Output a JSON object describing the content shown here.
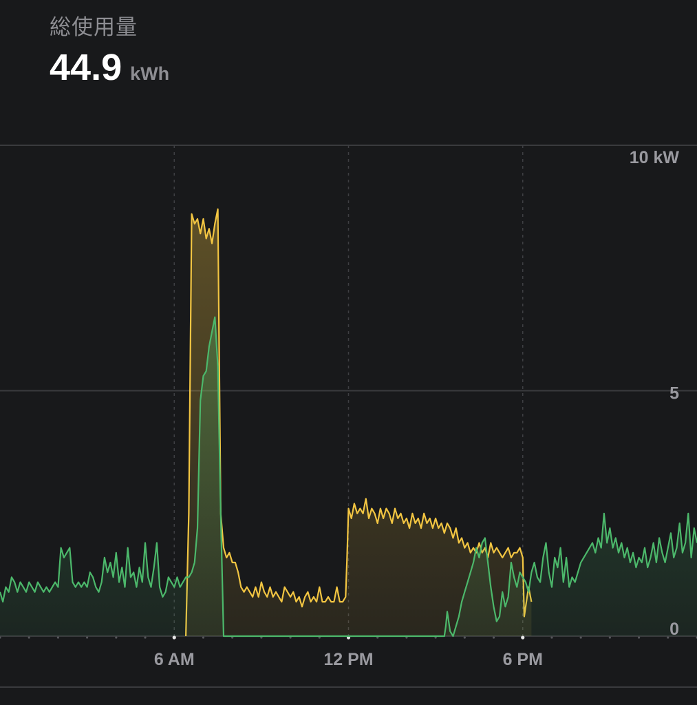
{
  "header": {
    "title": "総使用量",
    "total_value": "44.9",
    "total_unit": "kWh"
  },
  "colors": {
    "background": "#18191b",
    "consumption": "#f2c542",
    "solar": "#4cb86b",
    "grid": "#3a3b3e"
  },
  "chart_data": {
    "type": "area",
    "x_unit": "hour of day",
    "xlim": [
      0,
      24
    ],
    "ylim": [
      0,
      10
    ],
    "y_ticks": [
      {
        "value": 10,
        "label": "10 kW"
      },
      {
        "value": 5,
        "label": "5"
      },
      {
        "value": 0,
        "label": "0"
      }
    ],
    "x_ticks": [
      {
        "value": 6,
        "label": "6 AM"
      },
      {
        "value": 12,
        "label": "12 PM"
      },
      {
        "value": 18,
        "label": "6 PM"
      }
    ],
    "grid": true,
    "series": [
      {
        "key": "consumption",
        "color": "#f2c542",
        "points": [
          [
            6.4,
            0
          ],
          [
            6.5,
            2.5
          ],
          [
            6.6,
            8.6
          ],
          [
            6.7,
            8.4
          ],
          [
            6.8,
            8.5
          ],
          [
            6.9,
            8.2
          ],
          [
            7.0,
            8.5
          ],
          [
            7.1,
            8.1
          ],
          [
            7.2,
            8.3
          ],
          [
            7.3,
            8.0
          ],
          [
            7.4,
            8.4
          ],
          [
            7.5,
            8.7
          ],
          [
            7.6,
            2.5
          ],
          [
            7.7,
            1.8
          ],
          [
            7.8,
            1.6
          ],
          [
            7.9,
            1.7
          ],
          [
            8.0,
            1.5
          ],
          [
            8.1,
            1.5
          ],
          [
            8.2,
            1.3
          ],
          [
            8.3,
            1.0
          ],
          [
            8.4,
            0.9
          ],
          [
            8.5,
            1.0
          ],
          [
            8.6,
            0.9
          ],
          [
            8.7,
            0.8
          ],
          [
            8.8,
            1.0
          ],
          [
            8.9,
            0.8
          ],
          [
            9.0,
            1.1
          ],
          [
            9.1,
            0.9
          ],
          [
            9.2,
            0.8
          ],
          [
            9.3,
            1.0
          ],
          [
            9.4,
            0.8
          ],
          [
            9.5,
            0.9
          ],
          [
            9.6,
            0.8
          ],
          [
            9.7,
            0.7
          ],
          [
            9.8,
            1.0
          ],
          [
            9.9,
            0.9
          ],
          [
            10.0,
            0.8
          ],
          [
            10.1,
            0.9
          ],
          [
            10.2,
            0.7
          ],
          [
            10.3,
            0.8
          ],
          [
            10.4,
            0.6
          ],
          [
            10.5,
            0.8
          ],
          [
            10.6,
            0.9
          ],
          [
            10.7,
            0.7
          ],
          [
            10.8,
            0.8
          ],
          [
            10.9,
            0.7
          ],
          [
            11.0,
            1.0
          ],
          [
            11.1,
            0.7
          ],
          [
            11.2,
            0.7
          ],
          [
            11.3,
            0.8
          ],
          [
            11.4,
            0.7
          ],
          [
            11.5,
            0.7
          ],
          [
            11.6,
            1.0
          ],
          [
            11.7,
            0.7
          ],
          [
            11.8,
            0.7
          ],
          [
            11.9,
            0.8
          ],
          [
            11.95,
            1.6
          ],
          [
            12.0,
            2.6
          ],
          [
            12.1,
            2.4
          ],
          [
            12.2,
            2.7
          ],
          [
            12.3,
            2.5
          ],
          [
            12.4,
            2.6
          ],
          [
            12.5,
            2.5
          ],
          [
            12.6,
            2.8
          ],
          [
            12.7,
            2.4
          ],
          [
            12.8,
            2.6
          ],
          [
            12.9,
            2.5
          ],
          [
            13.0,
            2.3
          ],
          [
            13.1,
            2.6
          ],
          [
            13.2,
            2.4
          ],
          [
            13.3,
            2.6
          ],
          [
            13.4,
            2.5
          ],
          [
            13.5,
            2.3
          ],
          [
            13.6,
            2.6
          ],
          [
            13.7,
            2.4
          ],
          [
            13.8,
            2.5
          ],
          [
            13.9,
            2.3
          ],
          [
            14.0,
            2.4
          ],
          [
            14.1,
            2.2
          ],
          [
            14.2,
            2.5
          ],
          [
            14.3,
            2.3
          ],
          [
            14.4,
            2.4
          ],
          [
            14.5,
            2.2
          ],
          [
            14.6,
            2.5
          ],
          [
            14.7,
            2.3
          ],
          [
            14.8,
            2.4
          ],
          [
            14.9,
            2.2
          ],
          [
            15.0,
            2.4
          ],
          [
            15.1,
            2.2
          ],
          [
            15.2,
            2.3
          ],
          [
            15.3,
            2.1
          ],
          [
            15.4,
            2.3
          ],
          [
            15.5,
            2.2
          ],
          [
            15.6,
            2.0
          ],
          [
            15.7,
            2.2
          ],
          [
            15.8,
            1.9
          ],
          [
            15.9,
            2.0
          ],
          [
            16.0,
            1.8
          ],
          [
            16.1,
            1.9
          ],
          [
            16.2,
            1.7
          ],
          [
            16.3,
            1.8
          ],
          [
            16.4,
            1.7
          ],
          [
            16.5,
            1.9
          ],
          [
            16.6,
            1.7
          ],
          [
            16.7,
            1.8
          ],
          [
            16.8,
            1.6
          ],
          [
            16.9,
            1.9
          ],
          [
            17.0,
            1.7
          ],
          [
            17.1,
            1.8
          ],
          [
            17.2,
            1.7
          ],
          [
            17.3,
            1.6
          ],
          [
            17.4,
            1.7
          ],
          [
            17.5,
            1.8
          ],
          [
            17.6,
            1.6
          ],
          [
            17.7,
            1.7
          ],
          [
            17.8,
            1.7
          ],
          [
            17.9,
            1.8
          ],
          [
            18.0,
            1.6
          ],
          [
            18.05,
            0.4
          ],
          [
            18.1,
            0.6
          ],
          [
            18.2,
            1.0
          ],
          [
            18.3,
            0.7
          ]
        ]
      },
      {
        "key": "solar",
        "color": "#4cb86b",
        "points": [
          [
            0.0,
            0.9
          ],
          [
            0.1,
            0.7
          ],
          [
            0.2,
            1.0
          ],
          [
            0.3,
            0.9
          ],
          [
            0.4,
            1.2
          ],
          [
            0.5,
            1.1
          ],
          [
            0.6,
            0.9
          ],
          [
            0.7,
            1.1
          ],
          [
            0.8,
            1.0
          ],
          [
            0.9,
            0.9
          ],
          [
            1.0,
            1.1
          ],
          [
            1.1,
            1.0
          ],
          [
            1.2,
            0.9
          ],
          [
            1.3,
            1.1
          ],
          [
            1.4,
            1.0
          ],
          [
            1.5,
            0.9
          ],
          [
            1.6,
            1.0
          ],
          [
            1.7,
            0.9
          ],
          [
            1.8,
            1.0
          ],
          [
            1.9,
            1.1
          ],
          [
            2.0,
            1.0
          ],
          [
            2.1,
            1.8
          ],
          [
            2.2,
            1.6
          ],
          [
            2.3,
            1.7
          ],
          [
            2.4,
            1.8
          ],
          [
            2.5,
            1.1
          ],
          [
            2.6,
            1.0
          ],
          [
            2.7,
            1.1
          ],
          [
            2.8,
            1.0
          ],
          [
            2.9,
            1.1
          ],
          [
            3.0,
            1.0
          ],
          [
            3.1,
            1.3
          ],
          [
            3.2,
            1.2
          ],
          [
            3.3,
            1.0
          ],
          [
            3.4,
            0.9
          ],
          [
            3.5,
            1.1
          ],
          [
            3.6,
            1.6
          ],
          [
            3.7,
            1.3
          ],
          [
            3.8,
            1.5
          ],
          [
            3.9,
            1.2
          ],
          [
            4.0,
            1.7
          ],
          [
            4.1,
            1.1
          ],
          [
            4.2,
            1.4
          ],
          [
            4.3,
            1.0
          ],
          [
            4.4,
            1.8
          ],
          [
            4.5,
            1.2
          ],
          [
            4.6,
            1.3
          ],
          [
            4.7,
            1.0
          ],
          [
            4.8,
            1.4
          ],
          [
            4.9,
            1.1
          ],
          [
            5.0,
            1.9
          ],
          [
            5.1,
            1.2
          ],
          [
            5.2,
            1.0
          ],
          [
            5.3,
            1.4
          ],
          [
            5.4,
            1.9
          ],
          [
            5.5,
            1.0
          ],
          [
            5.6,
            0.8
          ],
          [
            5.7,
            0.9
          ],
          [
            5.8,
            1.2
          ],
          [
            5.9,
            1.1
          ],
          [
            6.0,
            1.0
          ],
          [
            6.1,
            1.2
          ],
          [
            6.2,
            1.0
          ],
          [
            6.3,
            1.1
          ],
          [
            6.4,
            1.2
          ],
          [
            6.5,
            1.2
          ],
          [
            6.6,
            1.3
          ],
          [
            6.7,
            1.5
          ],
          [
            6.8,
            2.2
          ],
          [
            6.9,
            4.8
          ],
          [
            7.0,
            5.3
          ],
          [
            7.1,
            5.4
          ],
          [
            7.2,
            5.9
          ],
          [
            7.3,
            6.2
          ],
          [
            7.4,
            6.5
          ],
          [
            7.5,
            5.5
          ],
          [
            7.6,
            2.5
          ],
          [
            7.7,
            0.0
          ],
          [
            15.3,
            0
          ],
          [
            15.35,
            0.2
          ],
          [
            15.4,
            0.5
          ],
          [
            15.5,
            0.1
          ],
          [
            15.6,
            0
          ],
          [
            15.7,
            0.2
          ],
          [
            15.8,
            0.4
          ],
          [
            15.9,
            0.7
          ],
          [
            16.0,
            0.9
          ],
          [
            16.1,
            1.1
          ],
          [
            16.2,
            1.3
          ],
          [
            16.3,
            1.5
          ],
          [
            16.4,
            1.8
          ],
          [
            16.5,
            1.6
          ],
          [
            16.6,
            1.9
          ],
          [
            16.7,
            2.0
          ],
          [
            16.8,
            1.5
          ],
          [
            16.9,
            1.0
          ],
          [
            17.0,
            0.6
          ],
          [
            17.1,
            0.3
          ],
          [
            17.2,
            0.4
          ],
          [
            17.3,
            0.9
          ],
          [
            17.4,
            0.6
          ],
          [
            17.5,
            0.8
          ],
          [
            17.6,
            1.5
          ],
          [
            17.7,
            1.2
          ],
          [
            17.8,
            1.0
          ],
          [
            17.9,
            1.3
          ],
          [
            18.0,
            1.2
          ],
          [
            18.1,
            1.1
          ],
          [
            18.2,
            0.9
          ],
          [
            18.3,
            1.3
          ],
          [
            18.4,
            1.5
          ],
          [
            18.5,
            1.2
          ],
          [
            18.6,
            1.1
          ],
          [
            18.7,
            1.6
          ],
          [
            18.8,
            1.9
          ],
          [
            18.9,
            1.3
          ],
          [
            19.0,
            1.0
          ],
          [
            19.1,
            1.6
          ],
          [
            19.2,
            1.4
          ],
          [
            19.3,
            1.8
          ],
          [
            19.4,
            1.1
          ],
          [
            19.5,
            1.6
          ],
          [
            19.6,
            1.0
          ],
          [
            19.7,
            1.2
          ],
          [
            19.8,
            1.1
          ],
          [
            19.9,
            1.3
          ],
          [
            20.0,
            1.5
          ],
          [
            20.1,
            1.6
          ],
          [
            20.2,
            1.7
          ],
          [
            20.3,
            1.8
          ],
          [
            20.4,
            1.9
          ],
          [
            20.5,
            1.7
          ],
          [
            20.6,
            2.0
          ],
          [
            20.7,
            1.8
          ],
          [
            20.8,
            2.5
          ],
          [
            20.9,
            1.9
          ],
          [
            21.0,
            2.2
          ],
          [
            21.1,
            1.8
          ],
          [
            21.2,
            2.0
          ],
          [
            21.3,
            1.7
          ],
          [
            21.4,
            1.9
          ],
          [
            21.5,
            1.6
          ],
          [
            21.6,
            1.8
          ],
          [
            21.7,
            1.5
          ],
          [
            21.8,
            1.7
          ],
          [
            21.9,
            1.4
          ],
          [
            22.0,
            1.6
          ],
          [
            22.1,
            1.5
          ],
          [
            22.2,
            1.8
          ],
          [
            22.3,
            1.4
          ],
          [
            22.4,
            1.6
          ],
          [
            22.5,
            1.9
          ],
          [
            22.6,
            1.5
          ],
          [
            22.7,
            2.0
          ],
          [
            22.8,
            1.7
          ],
          [
            22.9,
            1.5
          ],
          [
            23.0,
            1.8
          ],
          [
            23.1,
            2.1
          ],
          [
            23.2,
            1.6
          ],
          [
            23.3,
            1.8
          ],
          [
            23.4,
            2.3
          ],
          [
            23.5,
            1.7
          ],
          [
            23.6,
            1.9
          ],
          [
            23.7,
            2.5
          ],
          [
            23.8,
            1.6
          ],
          [
            23.9,
            2.2
          ],
          [
            24.0,
            1.9
          ]
        ]
      }
    ]
  }
}
